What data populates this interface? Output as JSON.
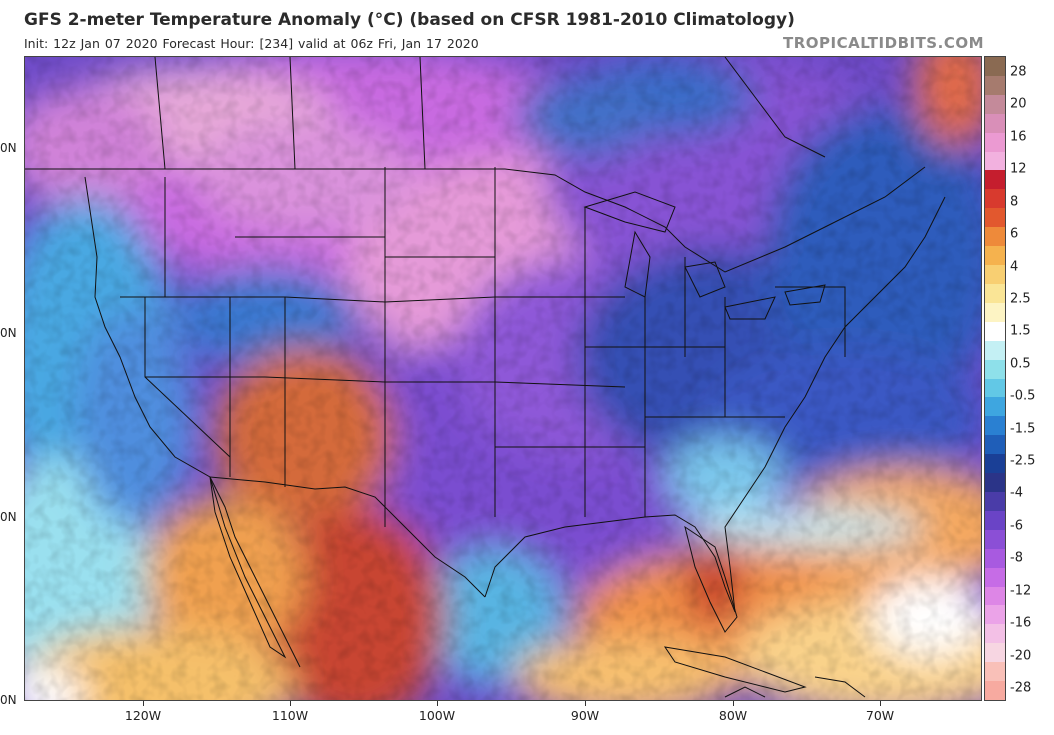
{
  "title": "GFS 2-meter Temperature Anomaly (°C) (based on CFSR 1981-2010 Climatology)",
  "subtitle": "Init: 12z Jan 07 2020   Forecast Hour: [234]   valid at 06z Fri, Jan 17 2020",
  "source": "TROPICALTIDBITS.COM",
  "map": {
    "latitude_labels": [
      "0N",
      "0N",
      "0N",
      "0N"
    ],
    "longitude_labels": [
      "120W",
      "110W",
      "100W",
      "90W",
      "80W",
      "70W"
    ]
  },
  "colorbar": {
    "labels": [
      "28",
      "20",
      "16",
      "12",
      "8",
      "6",
      "4",
      "2.5",
      "1.5",
      "0.5",
      "-0.5",
      "-1.5",
      "-2.5",
      "-4",
      "-6",
      "-8",
      "-12",
      "-16",
      "-20",
      "-28"
    ],
    "colors": [
      "#8a6a52",
      "#a67b6e",
      "#c48a9a",
      "#d98fb8",
      "#eb9ad2",
      "#f2b1df",
      "#c51e2e",
      "#d83a2e",
      "#e2582e",
      "#ee8a3a",
      "#f5b24e",
      "#f8cf72",
      "#fae596",
      "#fdf4c4",
      "#ffffff",
      "#c4f0f4",
      "#8ee0ea",
      "#62c8e6",
      "#3ea6e0",
      "#2a80d2",
      "#1f5eb8",
      "#1a3f96",
      "#2b3488",
      "#4a3ca8",
      "#6a44c6",
      "#8b4fd6",
      "#a85ae0",
      "#c66ce6",
      "#dd86e6",
      "#eba3e8",
      "#f3c0e6",
      "#f7d6e2",
      "#f9c0b8",
      "#f7aaa0"
    ]
  }
}
